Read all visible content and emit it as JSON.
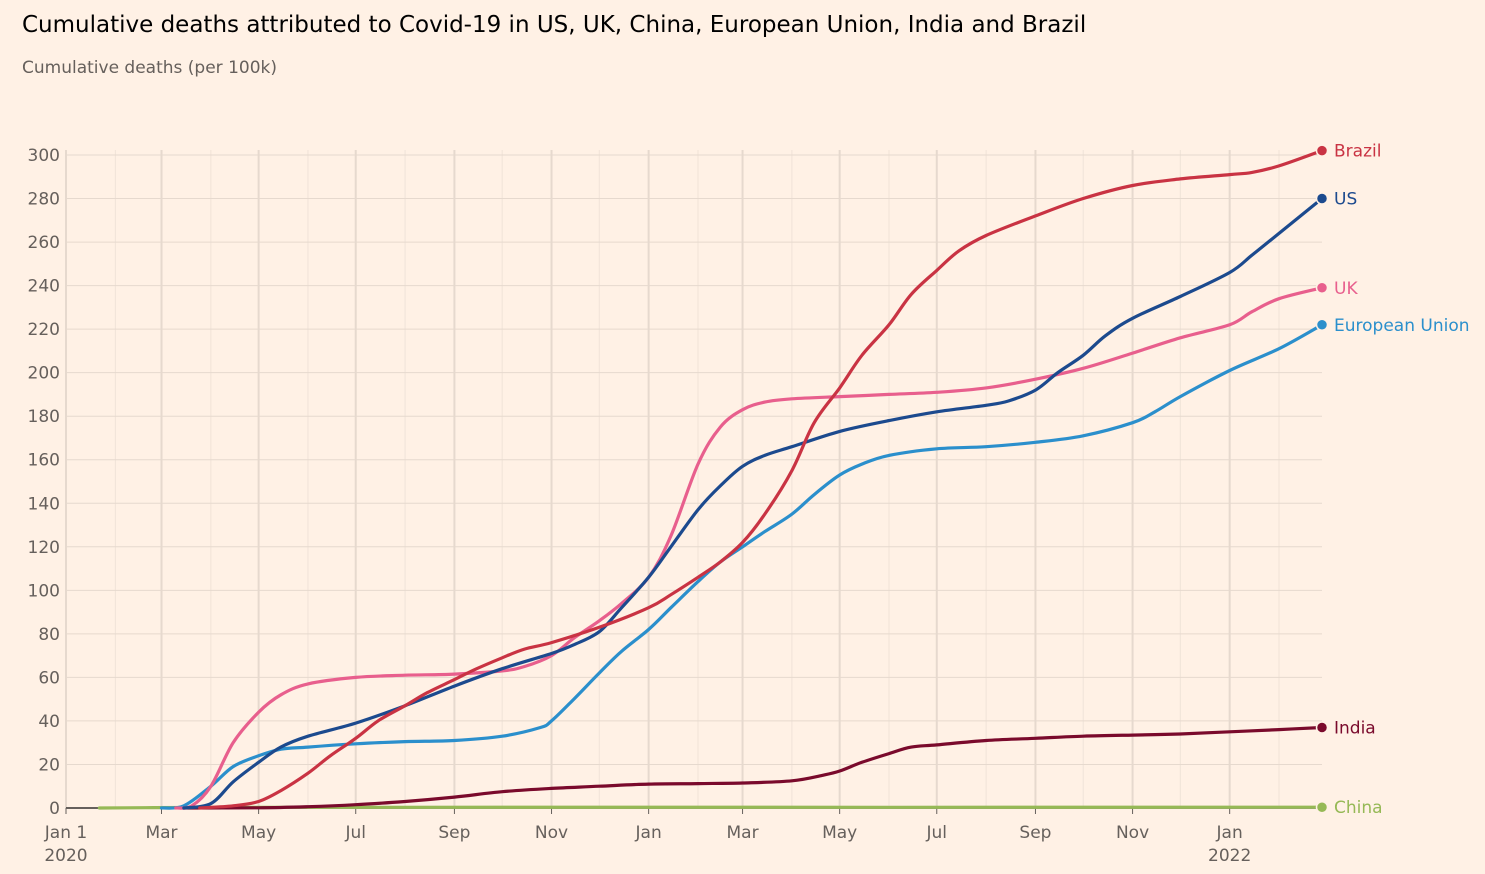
{
  "chart_data": {
    "type": "line",
    "title": "Cumulative deaths attributed to Covid-19 in US, UK, China, European Union, India and Brazil",
    "subtitle": "Cumulative deaths (per 100k)",
    "ylim": [
      0,
      300
    ],
    "yticks": [
      0,
      20,
      40,
      60,
      80,
      100,
      120,
      140,
      160,
      180,
      200,
      220,
      240,
      260,
      280,
      300
    ],
    "xlim": [
      "2020-01-01",
      "2022-02-28"
    ],
    "xticks": [
      {
        "date": "2020-01-01",
        "label": "Jan 1",
        "sublabel": "2020"
      },
      {
        "date": "2020-03-01",
        "label": "Mar",
        "sublabel": ""
      },
      {
        "date": "2020-05-01",
        "label": "May",
        "sublabel": ""
      },
      {
        "date": "2020-07-01",
        "label": "Jul",
        "sublabel": ""
      },
      {
        "date": "2020-09-01",
        "label": "Sep",
        "sublabel": ""
      },
      {
        "date": "2020-11-01",
        "label": "Nov",
        "sublabel": ""
      },
      {
        "date": "2021-01-01",
        "label": "Jan",
        "sublabel": ""
      },
      {
        "date": "2021-03-01",
        "label": "Mar",
        "sublabel": ""
      },
      {
        "date": "2021-05-01",
        "label": "May",
        "sublabel": ""
      },
      {
        "date": "2021-07-01",
        "label": "Jul",
        "sublabel": ""
      },
      {
        "date": "2021-09-01",
        "label": "Sep",
        "sublabel": ""
      },
      {
        "date": "2021-11-01",
        "label": "Nov",
        "sublabel": ""
      },
      {
        "date": "2022-01-01",
        "label": "Jan",
        "sublabel": "2022"
      }
    ],
    "grid": true,
    "legend": "end-labels",
    "series": [
      {
        "name": "China",
        "color": "#96b956",
        "points": [
          [
            "2020-01-22",
            0.0
          ],
          [
            "2020-02-20",
            0.15
          ],
          [
            "2020-04-20",
            0.33
          ],
          [
            "2021-06-01",
            0.34
          ],
          [
            "2022-02-28",
            0.35
          ]
        ]
      },
      {
        "name": "India",
        "color": "#7a0a2c",
        "points": [
          [
            "2020-03-15",
            0
          ],
          [
            "2020-05-01",
            0.1
          ],
          [
            "2020-06-01",
            0.6
          ],
          [
            "2020-07-01",
            1.5
          ],
          [
            "2020-08-01",
            3
          ],
          [
            "2020-09-01",
            5
          ],
          [
            "2020-10-01",
            7.5
          ],
          [
            "2020-11-01",
            9
          ],
          [
            "2020-12-01",
            10
          ],
          [
            "2021-01-01",
            11
          ],
          [
            "2021-02-01",
            11.2
          ],
          [
            "2021-03-01",
            11.5
          ],
          [
            "2021-04-01",
            12.5
          ],
          [
            "2021-04-20",
            15
          ],
          [
            "2021-05-01",
            17
          ],
          [
            "2021-05-15",
            21
          ],
          [
            "2021-06-01",
            25
          ],
          [
            "2021-06-15",
            28
          ],
          [
            "2021-07-01",
            29
          ],
          [
            "2021-08-01",
            31
          ],
          [
            "2021-09-01",
            32
          ],
          [
            "2021-10-01",
            33
          ],
          [
            "2021-11-01",
            33.5
          ],
          [
            "2021-12-01",
            34
          ],
          [
            "2022-01-01",
            35
          ],
          [
            "2022-02-01",
            36
          ],
          [
            "2022-02-28",
            37
          ]
        ]
      },
      {
        "name": "European Union",
        "color": "#2b8fcc",
        "points": [
          [
            "2020-03-01",
            0
          ],
          [
            "2020-03-15",
            1
          ],
          [
            "2020-04-01",
            10
          ],
          [
            "2020-04-15",
            19
          ],
          [
            "2020-05-01",
            24
          ],
          [
            "2020-05-15",
            27
          ],
          [
            "2020-06-01",
            28
          ],
          [
            "2020-07-01",
            29.5
          ],
          [
            "2020-08-01",
            30.5
          ],
          [
            "2020-09-01",
            31
          ],
          [
            "2020-10-01",
            33
          ],
          [
            "2020-10-25",
            37
          ],
          [
            "2020-11-01",
            40
          ],
          [
            "2020-11-15",
            50
          ],
          [
            "2020-12-01",
            62
          ],
          [
            "2020-12-15",
            72
          ],
          [
            "2021-01-01",
            82
          ],
          [
            "2021-01-15",
            92
          ],
          [
            "2021-02-01",
            104
          ],
          [
            "2021-02-15",
            113
          ],
          [
            "2021-03-01",
            120
          ],
          [
            "2021-03-15",
            127
          ],
          [
            "2021-04-01",
            135
          ],
          [
            "2021-04-15",
            144
          ],
          [
            "2021-05-01",
            153
          ],
          [
            "2021-05-15",
            158
          ],
          [
            "2021-06-01",
            162
          ],
          [
            "2021-07-01",
            165
          ],
          [
            "2021-08-01",
            166
          ],
          [
            "2021-09-01",
            168
          ],
          [
            "2021-10-01",
            171
          ],
          [
            "2021-11-01",
            177
          ],
          [
            "2021-11-15",
            182
          ],
          [
            "2021-12-01",
            189
          ],
          [
            "2022-01-01",
            201
          ],
          [
            "2022-02-01",
            211
          ],
          [
            "2022-02-28",
            222
          ]
        ]
      },
      {
        "name": "UK",
        "color": "#e85f8d",
        "points": [
          [
            "2020-03-10",
            0
          ],
          [
            "2020-03-20",
            1
          ],
          [
            "2020-04-01",
            10
          ],
          [
            "2020-04-15",
            30
          ],
          [
            "2020-05-01",
            44
          ],
          [
            "2020-05-15",
            52
          ],
          [
            "2020-06-01",
            57
          ],
          [
            "2020-07-01",
            60
          ],
          [
            "2020-08-01",
            61
          ],
          [
            "2020-09-01",
            61.5
          ],
          [
            "2020-10-01",
            63
          ],
          [
            "2020-10-15",
            65
          ],
          [
            "2020-11-01",
            70
          ],
          [
            "2020-11-15",
            78
          ],
          [
            "2020-12-01",
            86
          ],
          [
            "2020-12-15",
            94
          ],
          [
            "2021-01-01",
            106
          ],
          [
            "2021-01-15",
            125
          ],
          [
            "2021-02-01",
            158
          ],
          [
            "2021-02-15",
            175
          ],
          [
            "2021-03-01",
            183
          ],
          [
            "2021-03-15",
            186.5
          ],
          [
            "2021-04-01",
            188
          ],
          [
            "2021-05-01",
            189
          ],
          [
            "2021-06-01",
            190
          ],
          [
            "2021-07-01",
            191
          ],
          [
            "2021-08-01",
            193
          ],
          [
            "2021-09-01",
            197
          ],
          [
            "2021-10-01",
            202
          ],
          [
            "2021-11-01",
            209
          ],
          [
            "2021-12-01",
            216
          ],
          [
            "2022-01-01",
            222
          ],
          [
            "2022-01-15",
            228
          ],
          [
            "2022-02-01",
            234
          ],
          [
            "2022-02-28",
            239
          ]
        ]
      },
      {
        "name": "US",
        "color": "#1c4a8e",
        "points": [
          [
            "2020-03-15",
            0
          ],
          [
            "2020-04-01",
            2
          ],
          [
            "2020-04-15",
            12
          ],
          [
            "2020-05-01",
            21
          ],
          [
            "2020-05-15",
            28
          ],
          [
            "2020-06-01",
            33
          ],
          [
            "2020-07-01",
            39
          ],
          [
            "2020-08-01",
            47
          ],
          [
            "2020-09-01",
            56
          ],
          [
            "2020-10-01",
            64
          ],
          [
            "2020-11-01",
            71
          ],
          [
            "2020-11-15",
            75
          ],
          [
            "2020-12-01",
            81
          ],
          [
            "2020-12-15",
            92
          ],
          [
            "2021-01-01",
            106
          ],
          [
            "2021-01-15",
            120
          ],
          [
            "2021-02-01",
            137
          ],
          [
            "2021-02-15",
            148
          ],
          [
            "2021-03-01",
            157
          ],
          [
            "2021-03-15",
            162
          ],
          [
            "2021-04-01",
            166
          ],
          [
            "2021-05-01",
            173
          ],
          [
            "2021-06-01",
            178
          ],
          [
            "2021-07-01",
            182
          ],
          [
            "2021-08-01",
            185
          ],
          [
            "2021-08-15",
            187
          ],
          [
            "2021-09-01",
            192
          ],
          [
            "2021-09-15",
            200
          ],
          [
            "2021-10-01",
            208
          ],
          [
            "2021-10-15",
            217
          ],
          [
            "2021-11-01",
            225
          ],
          [
            "2021-12-01",
            235
          ],
          [
            "2022-01-01",
            246
          ],
          [
            "2022-01-15",
            254
          ],
          [
            "2022-02-01",
            264
          ],
          [
            "2022-02-28",
            280
          ]
        ]
      },
      {
        "name": "Brazil",
        "color": "#c93343",
        "points": [
          [
            "2020-03-25",
            0
          ],
          [
            "2020-04-15",
            1
          ],
          [
            "2020-05-01",
            3
          ],
          [
            "2020-05-15",
            8
          ],
          [
            "2020-06-01",
            16
          ],
          [
            "2020-06-15",
            24
          ],
          [
            "2020-07-01",
            32
          ],
          [
            "2020-07-15",
            40
          ],
          [
            "2020-08-01",
            47
          ],
          [
            "2020-08-15",
            53
          ],
          [
            "2020-09-01",
            59
          ],
          [
            "2020-09-15",
            64
          ],
          [
            "2020-10-01",
            69
          ],
          [
            "2020-10-15",
            73
          ],
          [
            "2020-11-01",
            76
          ],
          [
            "2020-12-01",
            83
          ],
          [
            "2021-01-01",
            92
          ],
          [
            "2021-01-15",
            98
          ],
          [
            "2021-02-01",
            106
          ],
          [
            "2021-02-15",
            113
          ],
          [
            "2021-03-01",
            122
          ],
          [
            "2021-03-15",
            135
          ],
          [
            "2021-04-01",
            155
          ],
          [
            "2021-04-15",
            177
          ],
          [
            "2021-05-01",
            193
          ],
          [
            "2021-05-15",
            208
          ],
          [
            "2021-06-01",
            222
          ],
          [
            "2021-06-15",
            236
          ],
          [
            "2021-07-01",
            247
          ],
          [
            "2021-07-15",
            256
          ],
          [
            "2021-08-01",
            263
          ],
          [
            "2021-09-01",
            272
          ],
          [
            "2021-10-01",
            280
          ],
          [
            "2021-11-01",
            286
          ],
          [
            "2021-12-01",
            289
          ],
          [
            "2022-01-01",
            291
          ],
          [
            "2022-01-15",
            292
          ],
          [
            "2022-02-01",
            295
          ],
          [
            "2022-02-28",
            302
          ]
        ]
      }
    ]
  }
}
